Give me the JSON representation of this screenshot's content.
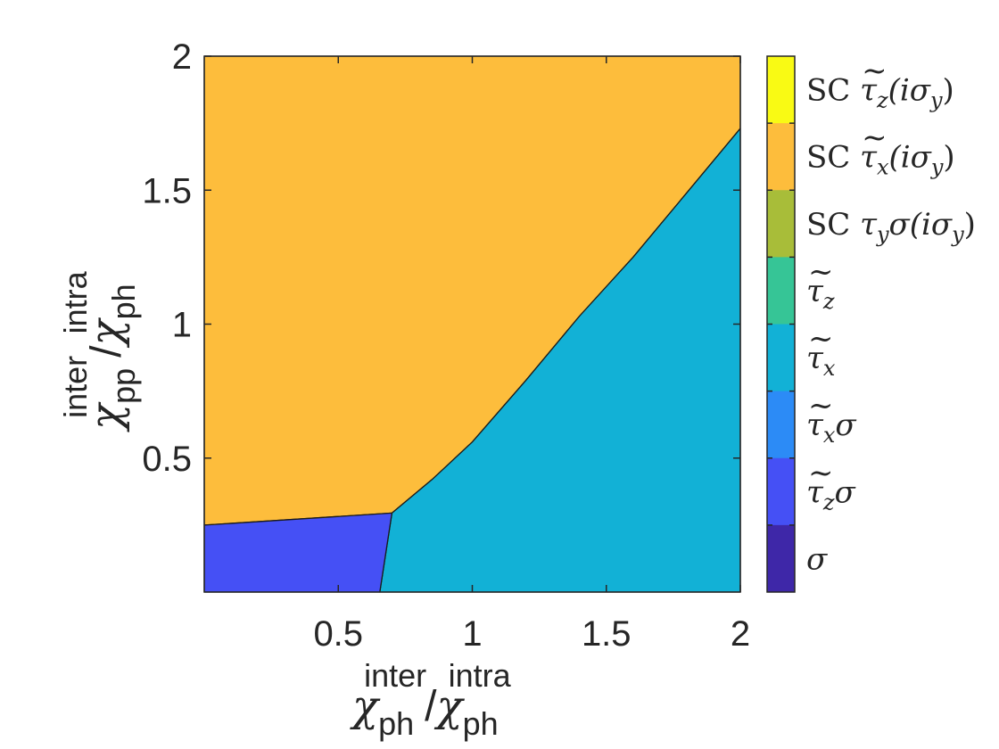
{
  "chart_data": {
    "type": "heatmap",
    "subtype": "phase-diagram",
    "xlim": [
      0,
      2
    ],
    "ylim": [
      0,
      2
    ],
    "x_ticks": [
      0.5,
      1,
      1.5,
      2
    ],
    "x_tick_labels": [
      "0.5",
      "1",
      "1.5",
      "2"
    ],
    "y_ticks": [
      0.5,
      1,
      1.5,
      2
    ],
    "y_tick_labels": [
      "0.5",
      "1",
      "1.5",
      "2"
    ],
    "xlabel": {
      "num_symbol": "χ",
      "num_sub": "ph",
      "num_sup": "inter",
      "slash": "/",
      "den_symbol": "χ",
      "den_sub": "ph",
      "den_sup": "intra"
    },
    "ylabel": {
      "num_symbol": "χ",
      "num_sub": "pp",
      "num_sup": "inter",
      "slash": "/",
      "den_symbol": "χ",
      "den_sub": "ph",
      "den_sup": "intra"
    },
    "grid": false,
    "colorbar": {
      "placement": "right",
      "entries": [
        {
          "color": "#f9fa14",
          "sc": "SC",
          "tilde": "~",
          "main": "τ",
          "sub": "z",
          "tail": "(iσ",
          "tail_sub": "y",
          "close": ")"
        },
        {
          "color": "#fdbd3c",
          "sc": "SC",
          "tilde": "~",
          "main": "τ",
          "sub": "x",
          "tail": "(iσ",
          "tail_sub": "y",
          "close": ")"
        },
        {
          "color": "#a8bd39",
          "sc": "SC",
          "tilde": "",
          "main": "τ",
          "sub": "y",
          "tail": "σ(iσ",
          "tail_sub": "y",
          "close": ")"
        },
        {
          "color": "#36c596",
          "sc": "",
          "tilde": "~",
          "main": "τ",
          "sub": "z",
          "tail": "",
          "tail_sub": "",
          "close": ""
        },
        {
          "color": "#12b1d6",
          "sc": "",
          "tilde": "~",
          "main": "τ",
          "sub": "x",
          "tail": "",
          "tail_sub": "",
          "close": ""
        },
        {
          "color": "#2c8bf6",
          "sc": "",
          "tilde": "~",
          "main": "τ",
          "sub": "x",
          "tail": "σ",
          "tail_sub": "",
          "close": ""
        },
        {
          "color": "#4550f5",
          "sc": "",
          "tilde": "~",
          "main": "τ",
          "sub": "z",
          "tail": "σ",
          "tail_sub": "",
          "close": ""
        },
        {
          "color": "#3e27a8",
          "sc": "",
          "tilde": "",
          "main": "σ",
          "sub": "",
          "tail": "",
          "tail_sub": "",
          "close": ""
        }
      ]
    },
    "regions": [
      {
        "phase": "SC τ̃x(iσy)",
        "color": "#fdbd3c",
        "boundary": [
          [
            0,
            0.25
          ],
          [
            0.7,
            0.295
          ],
          [
            0.85,
            0.42
          ],
          [
            1,
            0.56
          ],
          [
            1.2,
            0.79
          ],
          [
            1.4,
            1.03
          ],
          [
            1.6,
            1.25
          ],
          [
            1.8,
            1.49
          ],
          [
            2,
            1.73
          ],
          [
            2,
            2
          ],
          [
            0,
            2
          ]
        ]
      },
      {
        "phase": "τ̃x",
        "color": "#12b1d6",
        "boundary": [
          [
            0.655,
            0
          ],
          [
            2,
            0
          ],
          [
            2,
            1.73
          ],
          [
            1.8,
            1.49
          ],
          [
            1.6,
            1.25
          ],
          [
            1.4,
            1.03
          ],
          [
            1.2,
            0.79
          ],
          [
            1,
            0.56
          ],
          [
            0.85,
            0.42
          ],
          [
            0.7,
            0.295
          ]
        ]
      },
      {
        "phase": "τ̃zσ",
        "color": "#4550f5",
        "boundary": [
          [
            0,
            0
          ],
          [
            0.655,
            0
          ],
          [
            0.7,
            0.295
          ],
          [
            0,
            0.25
          ]
        ]
      }
    ]
  }
}
